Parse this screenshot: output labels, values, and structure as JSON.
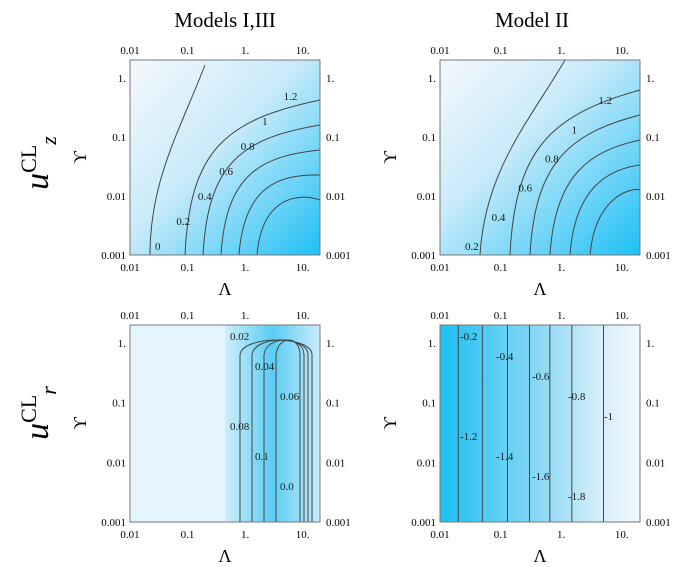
{
  "figure": {
    "col_titles": [
      "Models I,III",
      "Model II"
    ],
    "row_labels": [
      {
        "base": "u",
        "sup": "CL",
        "sub": "z"
      },
      {
        "base": "u",
        "sup": "CL",
        "sub": "r"
      }
    ]
  },
  "chart_data": [
    {
      "type": "heatmap",
      "title": "",
      "panel": "u_z^CL, Models I,III",
      "xlabel": "Λ",
      "ylabel": "ϒ",
      "xscale": "log",
      "yscale": "log",
      "xlim": [
        0.01,
        20
      ],
      "ylim": [
        0.001,
        2
      ],
      "x_ticks": [
        "0.01",
        "0.1",
        "1.",
        "10."
      ],
      "y_ticks": [
        "0.001",
        "0.01",
        "0.1",
        "1."
      ],
      "contour_labels": [
        "0",
        "0.2",
        "0.4",
        "0.6",
        "0.8",
        "1",
        "1.2"
      ],
      "color_low": "#f4f8fc",
      "color_high": "#1ec0f5"
    },
    {
      "type": "heatmap",
      "title": "",
      "panel": "u_z^CL, Model II",
      "xlabel": "Λ",
      "ylabel": "ϒ",
      "xscale": "log",
      "yscale": "log",
      "xlim": [
        0.01,
        20
      ],
      "ylim": [
        0.001,
        2
      ],
      "x_ticks": [
        "0.01",
        "0.1",
        "1.",
        "10."
      ],
      "y_ticks": [
        "0.001",
        "0.01",
        "0.1",
        "1."
      ],
      "contour_labels": [
        "0.2",
        "0.4",
        "0.6",
        "0.8",
        "1",
        "1.2"
      ],
      "color_low": "#f4f8fc",
      "color_high": "#1ec0f5"
    },
    {
      "type": "heatmap",
      "title": "",
      "panel": "u_r^CL, Models I,III",
      "xlabel": "Λ",
      "ylabel": "ϒ",
      "xscale": "log",
      "yscale": "log",
      "xlim": [
        0.01,
        20
      ],
      "ylim": [
        0.001,
        2
      ],
      "x_ticks": [
        "0.01",
        "0.1",
        "1.",
        "10."
      ],
      "y_ticks": [
        "0.001",
        "0.01",
        "0.1",
        "1."
      ],
      "contour_labels": [
        "0.02",
        "0.04",
        "0.06",
        "0.08",
        "0.1",
        "0.0"
      ],
      "color_low": "#ffffff",
      "color_high": "#5bcdf3"
    },
    {
      "type": "heatmap",
      "title": "",
      "panel": "u_r^CL, Model II",
      "xlabel": "Λ",
      "ylabel": "ϒ",
      "xscale": "log",
      "yscale": "log",
      "xlim": [
        0.01,
        20
      ],
      "ylim": [
        0.001,
        2
      ],
      "x_ticks": [
        "0.01",
        "0.1",
        "1.",
        "10."
      ],
      "y_ticks": [
        "0.001",
        "0.01",
        "0.1",
        "1."
      ],
      "contour_labels": [
        "-0.2",
        "-0.4",
        "-0.6",
        "-0.8",
        "-1",
        "-1.2",
        "-1.4",
        "-1.6",
        "-1.8"
      ],
      "color_low": "#1ec0f5",
      "color_high": "#f4f8fc"
    }
  ]
}
